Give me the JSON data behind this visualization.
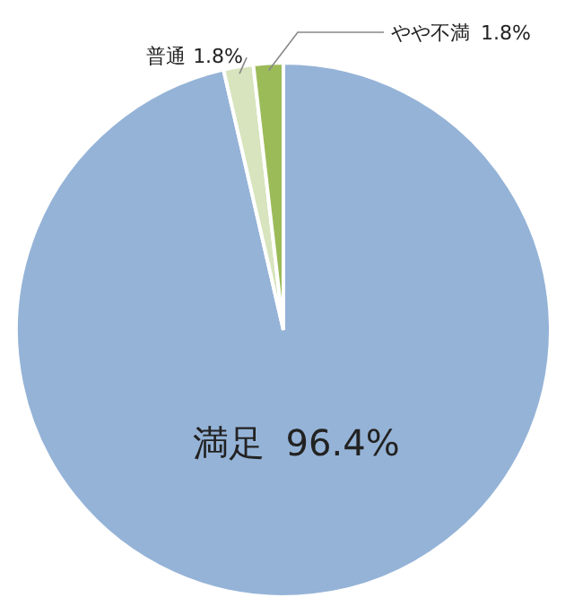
{
  "chart_data": {
    "type": "pie",
    "categories": [
      "満足",
      "普通",
      "やや不満"
    ],
    "values": [
      96.4,
      1.8,
      1.8
    ],
    "value_labels": [
      "96.4%",
      "1.8%",
      "1.8%"
    ],
    "colors": [
      "#95b3d7",
      "#d7e4bd",
      "#9bbb59"
    ],
    "legend": false
  }
}
